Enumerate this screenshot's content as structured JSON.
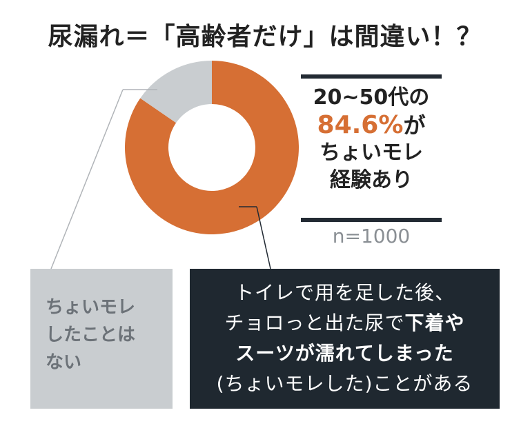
{
  "title": "尿漏れ＝「高齢者だけ」は間違い！？",
  "stat": {
    "line1": "20~50代の",
    "percent": "84.6%",
    "percent_suffix": "が",
    "line3": "ちょいモレ",
    "line4": "経験あり"
  },
  "sample": "n=1000",
  "callout_gray": {
    "line1": "ちょいモレ",
    "line2": "したことは",
    "line3": "ない"
  },
  "callout_dark": {
    "line1": "トイレで用を足した後、",
    "line2_normal": "チョロっと出た尿で",
    "line2_bold": "下着や",
    "line3_bold": "スーツが濡れてしまった",
    "line4": "(ちょいモレした)ことがある"
  },
  "colors": {
    "yes": "#d66f34",
    "no": "#c9cdd0",
    "dark_box": "#1f2830",
    "rule": "#222a33"
  },
  "chart_data": {
    "type": "pie",
    "categories": [
      "ちょいモレした",
      "ちょいモレしたことはない"
    ],
    "values": [
      84.6,
      15.4
    ],
    "title": "",
    "donut": true
  }
}
